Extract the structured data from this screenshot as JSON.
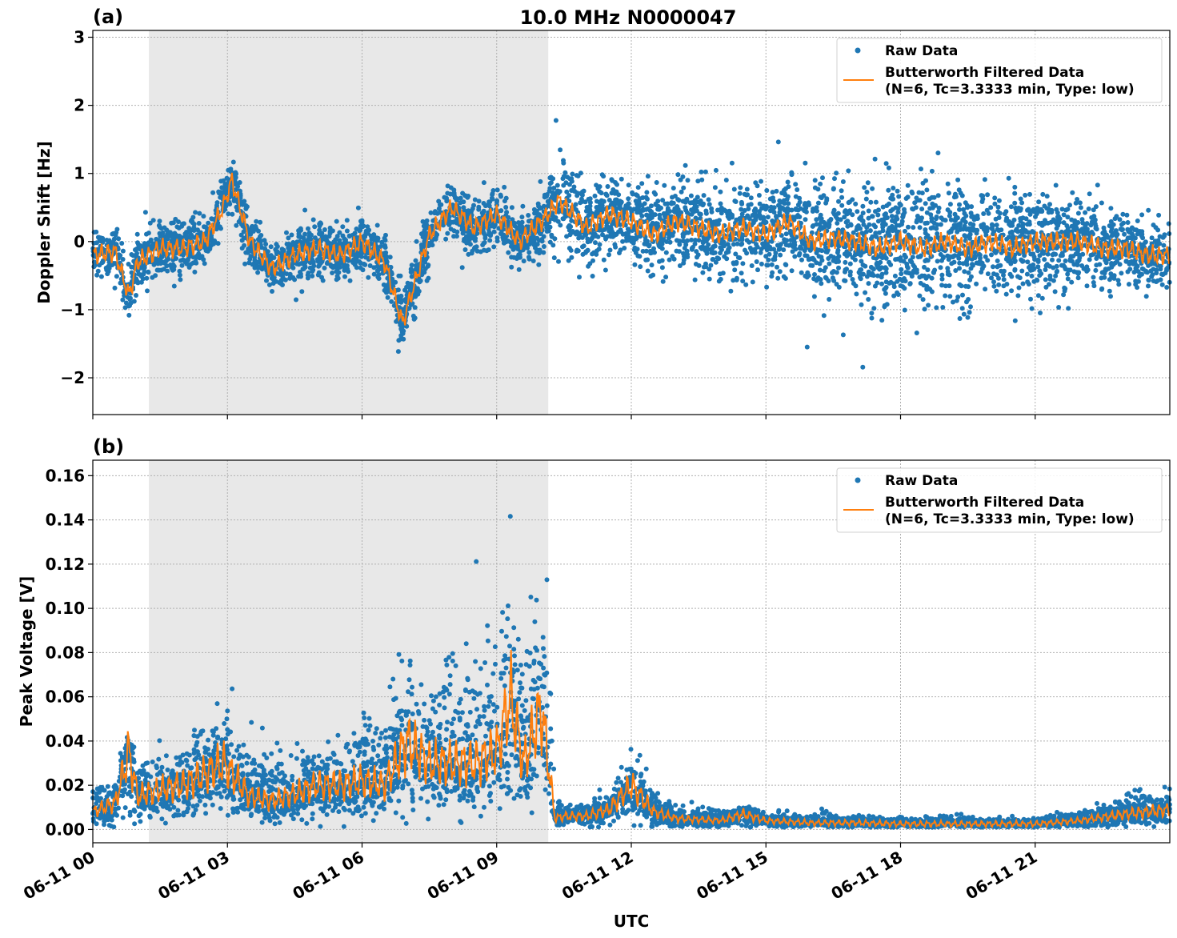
{
  "figure_title": "10.0 MHz N0000047",
  "colors": {
    "raw": "#1f77b4",
    "filtered": "#ff7f0e",
    "shade": "#e8e8e8",
    "grid": "#b0b0b0"
  },
  "xlabel": "UTC",
  "x_ticks": [
    "06-11 00",
    "06-11 03",
    "06-11 06",
    "06-11 09",
    "06-11 12",
    "06-11 15",
    "06-11 18",
    "06-11 21"
  ],
  "x_tick_hours": [
    0,
    3,
    6,
    9,
    12,
    15,
    18,
    21
  ],
  "chart_data": [
    {
      "type": "scatter",
      "panel_label": "(a)",
      "ylabel": "Doppler Shift [Hz]",
      "xlim_hours": [
        0,
        24
      ],
      "ylim": [
        -2.54,
        3.1
      ],
      "y_ticks": [
        -2,
        -1,
        0,
        1,
        2,
        3
      ],
      "y_tick_labels": [
        "−2",
        "−1",
        "0",
        "1",
        "2",
        "3"
      ],
      "grid": true,
      "legend": {
        "placement": "top-right",
        "entries": [
          "Raw Data",
          "Butterworth Filtered Data",
          "(N=6, Tc=3.3333 min, Type: low)"
        ]
      },
      "shaded_interval_hours": [
        1.25,
        10.15
      ],
      "filtered_series": {
        "name": "Butterworth Filtered Data",
        "hours": [
          0,
          0.5,
          0.8,
          1,
          1.5,
          2,
          2.5,
          2.9,
          3.1,
          3.5,
          4,
          4.5,
          5,
          5.5,
          6,
          6.5,
          6.9,
          7.5,
          8,
          8.5,
          9,
          9.5,
          10,
          10.4,
          11,
          11.5,
          12,
          12.5,
          13,
          13.5,
          14,
          14.5,
          15,
          15.5,
          16,
          16.5,
          17,
          17.5,
          18,
          18.5,
          19,
          19.5,
          20,
          20.5,
          21,
          21.5,
          22,
          22.5,
          23,
          23.5,
          24
        ],
        "values": [
          -0.2,
          -0.15,
          -0.8,
          -0.3,
          -0.1,
          -0.1,
          0.0,
          0.5,
          0.9,
          0.0,
          -0.4,
          -0.2,
          -0.1,
          -0.2,
          0.0,
          -0.3,
          -1.2,
          0.1,
          0.5,
          0.2,
          0.4,
          0.0,
          0.3,
          0.6,
          0.2,
          0.4,
          0.3,
          0.1,
          0.3,
          0.2,
          0.1,
          0.2,
          0.1,
          0.3,
          0.0,
          0.05,
          0.0,
          -0.1,
          0.0,
          -0.1,
          0.0,
          -0.1,
          0.0,
          -0.1,
          0.0,
          0.0,
          0.0,
          -0.1,
          -0.1,
          -0.2,
          -0.2
        ]
      },
      "raw_spread": {
        "name": "Raw Data",
        "hours": [
          0,
          10,
          10.3,
          12,
          15,
          18,
          21,
          24
        ],
        "half_width": [
          0.35,
          0.35,
          0.6,
          0.5,
          0.6,
          0.9,
          0.6,
          0.4
        ]
      }
    },
    {
      "type": "scatter",
      "panel_label": "(b)",
      "ylabel": "Peak Voltage [V]",
      "xlim_hours": [
        0,
        24
      ],
      "ylim": [
        -0.006,
        0.167
      ],
      "y_ticks": [
        0,
        0.02,
        0.04,
        0.06,
        0.08,
        0.1,
        0.12,
        0.14,
        0.16
      ],
      "y_tick_labels": [
        "0.00",
        "0.02",
        "0.04",
        "0.06",
        "0.08",
        "0.10",
        "0.12",
        "0.14",
        "0.16"
      ],
      "grid": true,
      "legend": {
        "placement": "top-right",
        "entries": [
          "Raw Data",
          "Butterworth Filtered Data",
          "(N=6, Tc=3.3333 min, Type: low)"
        ]
      },
      "shaded_interval_hours": [
        1.25,
        10.15
      ],
      "filtered_series": {
        "name": "Butterworth Filtered Data",
        "hours": [
          0,
          0.5,
          0.8,
          1,
          1.5,
          2,
          2.5,
          2.9,
          3.5,
          4,
          4.5,
          5,
          5.5,
          6,
          6.5,
          7,
          7.5,
          8,
          8.5,
          9,
          9.3,
          9.6,
          10,
          10.3,
          10.5,
          11,
          11.5,
          12,
          12.5,
          13,
          14,
          14.5,
          15,
          16,
          17,
          18,
          19,
          20,
          21,
          22,
          23,
          24
        ],
        "values": [
          0.008,
          0.012,
          0.035,
          0.015,
          0.018,
          0.02,
          0.025,
          0.03,
          0.015,
          0.013,
          0.016,
          0.02,
          0.02,
          0.022,
          0.02,
          0.04,
          0.03,
          0.03,
          0.03,
          0.035,
          0.06,
          0.03,
          0.055,
          0.005,
          0.006,
          0.006,
          0.009,
          0.02,
          0.008,
          0.005,
          0.004,
          0.007,
          0.004,
          0.003,
          0.003,
          0.0025,
          0.0025,
          0.0025,
          0.0025,
          0.004,
          0.007,
          0.009
        ]
      },
      "raw_spread": {
        "name": "Raw Data",
        "hours": [
          0,
          2,
          3,
          5,
          7,
          8,
          9,
          10,
          10.25,
          10.3,
          11.5,
          12,
          13,
          15,
          21,
          23,
          24
        ],
        "half_width": [
          0.009,
          0.012,
          0.02,
          0.012,
          0.03,
          0.04,
          0.04,
          0.04,
          0.06,
          0.004,
          0.005,
          0.012,
          0.004,
          0.003,
          0.002,
          0.006,
          0.007
        ]
      }
    }
  ]
}
